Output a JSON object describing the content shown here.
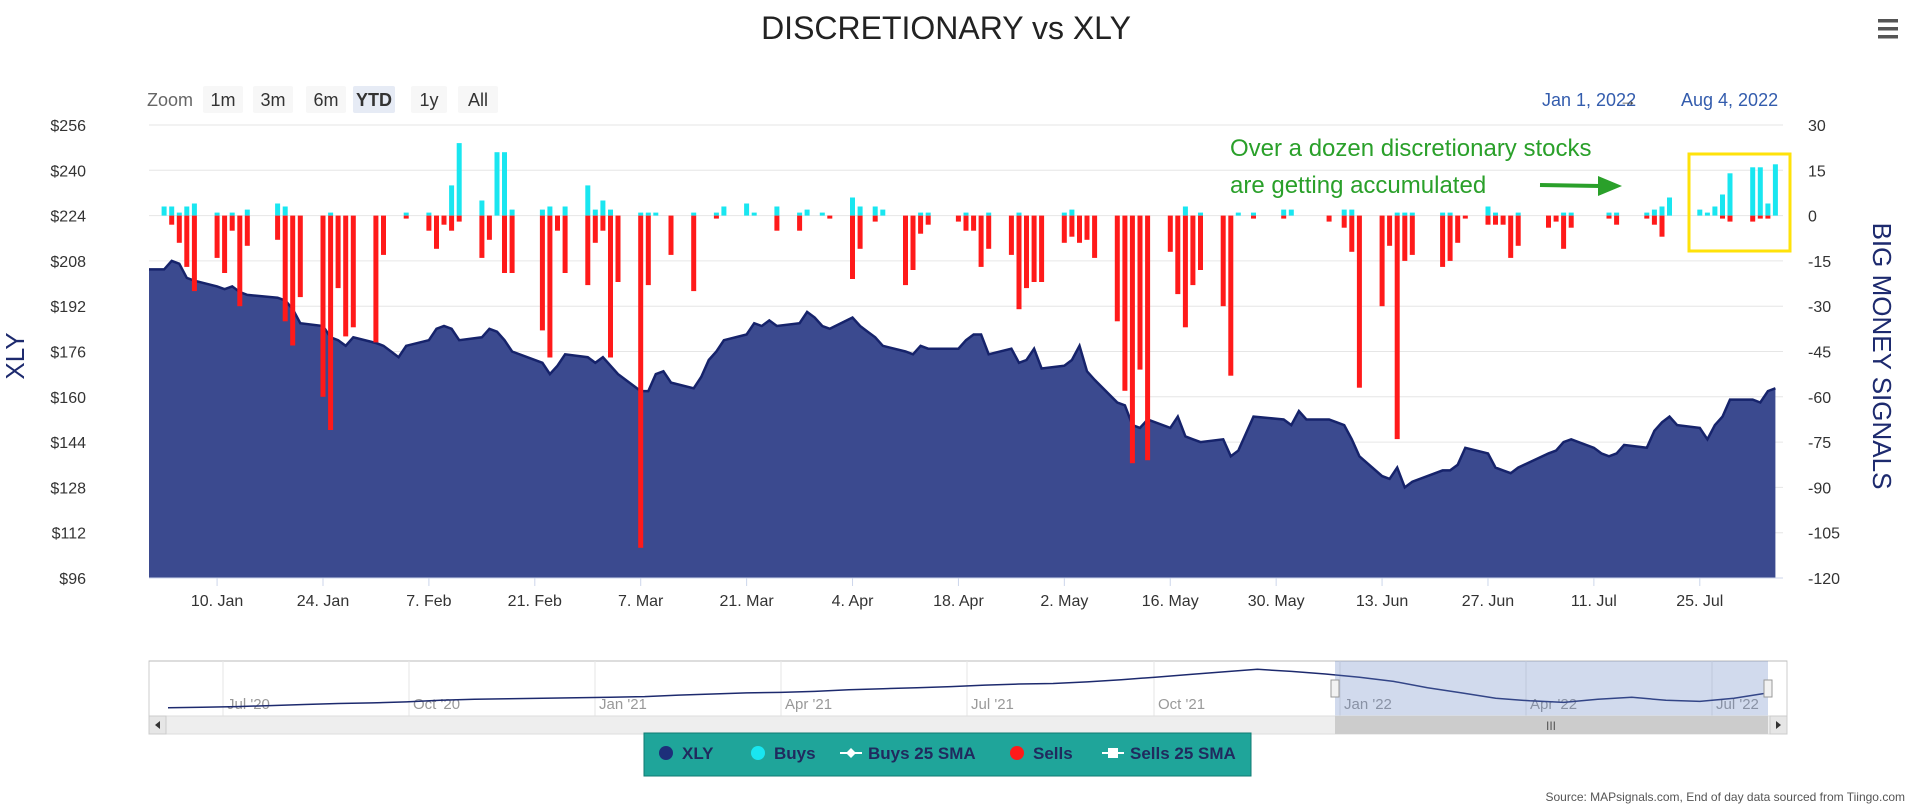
{
  "chart_data": {
    "type": "area+bar",
    "title": "DISCRETIONARY vs XLY",
    "left_axis_label": "XLY",
    "right_axis_label": "BIG MONEY SIGNALS",
    "left_ylim": [
      96,
      256
    ],
    "left_ticks": [
      "$256",
      "$240",
      "$224",
      "$208",
      "$192",
      "$176",
      "$160",
      "$144",
      "$128",
      "$112",
      "$96"
    ],
    "right_ylim": [
      -120,
      30
    ],
    "right_ticks": [
      "30",
      "15",
      "0",
      "-15",
      "-30",
      "-45",
      "-60",
      "-75",
      "-90",
      "-105",
      "-120"
    ],
    "x_ticks": [
      "10. Jan",
      "24. Jan",
      "7. Feb",
      "21. Feb",
      "7. Mar",
      "21. Mar",
      "4. Apr",
      "18. Apr",
      "2. May",
      "16. May",
      "30. May",
      "13. Jun",
      "27. Jun",
      "11. Jul",
      "25. Jul"
    ],
    "date_range": {
      "from": "Jan 1, 2022",
      "to": "Aug 4, 2022",
      "arrow": "→"
    },
    "zoom": {
      "label": "Zoom",
      "buttons": [
        "1m",
        "3m",
        "6m",
        "YTD",
        "1y",
        "All"
      ],
      "selected": "YTD"
    },
    "annotation": {
      "line1": "Over a dozen discretionary stocks",
      "line2": "are getting accumulated",
      "color": "#2aa02a"
    },
    "navigator_ticks": [
      "Jul '20",
      "Oct '20",
      "Jan '21",
      "Apr '21",
      "Jul '21",
      "Oct '21",
      "Jan '22",
      "Apr '22",
      "Jul '22"
    ],
    "legend": [
      {
        "name": "XLY",
        "symbol": "circle",
        "color": "#1d2f7a"
      },
      {
        "name": "Buys",
        "symbol": "circle",
        "color": "#19e6f0"
      },
      {
        "name": "Buys 25 SMA",
        "symbol": "line-diamond",
        "color": "#ffffff"
      },
      {
        "name": "Sells",
        "symbol": "circle",
        "color": "#ff1a1a"
      },
      {
        "name": "Sells 25 SMA",
        "symbol": "line-square",
        "color": "#ffffff"
      }
    ],
    "source": "Source: MAPsignals.com, End of day data sourced from Tiingo.com",
    "colors": {
      "xly_fill": "#3b4a8f",
      "xly_line": "#16236b",
      "buys": "#19e6f0",
      "sells": "#ff1a1a",
      "legend_bg": "#1fa59a",
      "highlight_box": "#ffe20a"
    },
    "xly_series": [
      [
        "2022-01-03",
        205
      ],
      [
        "2022-01-04",
        208
      ],
      [
        "2022-01-05",
        207
      ],
      [
        "2022-01-06",
        202
      ],
      [
        "2022-01-07",
        201
      ],
      [
        "2022-01-10",
        199
      ],
      [
        "2022-01-11",
        198
      ],
      [
        "2022-01-12",
        199
      ],
      [
        "2022-01-13",
        197
      ],
      [
        "2022-01-14",
        196
      ],
      [
        "2022-01-18",
        195
      ],
      [
        "2022-01-19",
        194
      ],
      [
        "2022-01-20",
        191
      ],
      [
        "2022-01-21",
        186
      ],
      [
        "2022-01-24",
        185
      ],
      [
        "2022-01-25",
        181
      ],
      [
        "2022-01-26",
        180
      ],
      [
        "2022-01-27",
        178
      ],
      [
        "2022-01-28",
        181
      ],
      [
        "2022-01-31",
        179
      ],
      [
        "2022-02-01",
        178
      ],
      [
        "2022-02-02",
        176
      ],
      [
        "2022-02-03",
        174
      ],
      [
        "2022-02-04",
        178
      ],
      [
        "2022-02-07",
        180
      ],
      [
        "2022-02-08",
        184
      ],
      [
        "2022-02-09",
        185
      ],
      [
        "2022-02-10",
        184
      ],
      [
        "2022-02-11",
        180
      ],
      [
        "2022-02-14",
        181
      ],
      [
        "2022-02-15",
        184
      ],
      [
        "2022-02-16",
        183
      ],
      [
        "2022-02-17",
        180
      ],
      [
        "2022-02-18",
        176
      ],
      [
        "2022-02-22",
        172
      ],
      [
        "2022-02-23",
        168
      ],
      [
        "2022-02-24",
        171
      ],
      [
        "2022-02-25",
        175
      ],
      [
        "2022-02-28",
        174
      ],
      [
        "2022-03-01",
        172
      ],
      [
        "2022-03-02",
        174
      ],
      [
        "2022-03-03",
        171
      ],
      [
        "2022-03-04",
        168
      ],
      [
        "2022-03-07",
        162
      ],
      [
        "2022-03-08",
        162
      ],
      [
        "2022-03-09",
        168
      ],
      [
        "2022-03-10",
        169
      ],
      [
        "2022-03-11",
        165
      ],
      [
        "2022-03-14",
        163
      ],
      [
        "2022-03-15",
        167
      ],
      [
        "2022-03-16",
        173
      ],
      [
        "2022-03-17",
        176
      ],
      [
        "2022-03-18",
        180
      ],
      [
        "2022-03-21",
        182
      ],
      [
        "2022-03-22",
        186
      ],
      [
        "2022-03-23",
        185
      ],
      [
        "2022-03-24",
        187
      ],
      [
        "2022-03-25",
        185
      ],
      [
        "2022-03-28",
        186
      ],
      [
        "2022-03-29",
        190
      ],
      [
        "2022-03-30",
        188
      ],
      [
        "2022-03-31",
        185
      ],
      [
        "2022-04-01",
        184
      ],
      [
        "2022-04-04",
        188
      ],
      [
        "2022-04-05",
        185
      ],
      [
        "2022-04-06",
        183
      ],
      [
        "2022-04-07",
        181
      ],
      [
        "2022-04-08",
        178
      ],
      [
        "2022-04-11",
        176
      ],
      [
        "2022-04-12",
        175
      ],
      [
        "2022-04-13",
        178
      ],
      [
        "2022-04-14",
        177
      ],
      [
        "2022-04-18",
        177
      ],
      [
        "2022-04-19",
        180
      ],
      [
        "2022-04-20",
        182
      ],
      [
        "2022-04-21",
        182
      ],
      [
        "2022-04-22",
        175
      ],
      [
        "2022-04-25",
        177
      ],
      [
        "2022-04-26",
        172
      ],
      [
        "2022-04-27",
        173
      ],
      [
        "2022-04-28",
        177
      ],
      [
        "2022-04-29",
        170
      ],
      [
        "2022-05-02",
        171
      ],
      [
        "2022-05-03",
        173
      ],
      [
        "2022-05-04",
        178
      ],
      [
        "2022-05-05",
        169
      ],
      [
        "2022-05-06",
        166
      ],
      [
        "2022-05-09",
        158
      ],
      [
        "2022-05-10",
        157
      ],
      [
        "2022-05-11",
        150
      ],
      [
        "2022-05-12",
        149
      ],
      [
        "2022-05-13",
        152
      ],
      [
        "2022-05-16",
        149
      ],
      [
        "2022-05-17",
        153
      ],
      [
        "2022-05-18",
        146
      ],
      [
        "2022-05-19",
        145
      ],
      [
        "2022-05-20",
        144
      ],
      [
        "2022-05-23",
        145
      ],
      [
        "2022-05-24",
        139
      ],
      [
        "2022-05-25",
        141
      ],
      [
        "2022-05-26",
        147
      ],
      [
        "2022-05-27",
        153
      ],
      [
        "2022-05-31",
        152
      ],
      [
        "2022-06-01",
        150
      ],
      [
        "2022-06-02",
        155
      ],
      [
        "2022-06-03",
        152
      ],
      [
        "2022-06-06",
        152
      ],
      [
        "2022-06-07",
        151
      ],
      [
        "2022-06-08",
        150
      ],
      [
        "2022-06-09",
        145
      ],
      [
        "2022-06-10",
        139
      ],
      [
        "2022-06-13",
        132
      ],
      [
        "2022-06-14",
        131
      ],
      [
        "2022-06-15",
        135
      ],
      [
        "2022-06-16",
        128
      ],
      [
        "2022-06-17",
        130
      ],
      [
        "2022-06-21",
        134
      ],
      [
        "2022-06-22",
        134
      ],
      [
        "2022-06-23",
        136
      ],
      [
        "2022-06-24",
        142
      ],
      [
        "2022-06-27",
        140
      ],
      [
        "2022-06-28",
        135
      ],
      [
        "2022-06-29",
        134
      ],
      [
        "2022-06-30",
        133
      ],
      [
        "2022-07-01",
        135
      ],
      [
        "2022-07-05",
        140
      ],
      [
        "2022-07-06",
        141
      ],
      [
        "2022-07-07",
        144
      ],
      [
        "2022-07-08",
        145
      ],
      [
        "2022-07-11",
        142
      ],
      [
        "2022-07-12",
        140
      ],
      [
        "2022-07-13",
        139
      ],
      [
        "2022-07-14",
        140
      ],
      [
        "2022-07-15",
        143
      ],
      [
        "2022-07-18",
        142
      ],
      [
        "2022-07-19",
        148
      ],
      [
        "2022-07-20",
        151
      ],
      [
        "2022-07-21",
        153
      ],
      [
        "2022-07-22",
        150
      ],
      [
        "2022-07-25",
        149
      ],
      [
        "2022-07-26",
        145
      ],
      [
        "2022-07-27",
        150
      ],
      [
        "2022-07-28",
        153
      ],
      [
        "2022-07-29",
        159
      ],
      [
        "2022-08-01",
        159
      ],
      [
        "2022-08-02",
        158
      ],
      [
        "2022-08-03",
        162
      ],
      [
        "2022-08-04",
        163
      ]
    ],
    "buys": [
      [
        "2022-01-03",
        3
      ],
      [
        "2022-01-04",
        3
      ],
      [
        "2022-01-05",
        1
      ],
      [
        "2022-01-06",
        3
      ],
      [
        "2022-01-07",
        4
      ],
      [
        "2022-01-10",
        1
      ],
      [
        "2022-01-12",
        1
      ],
      [
        "2022-01-14",
        2
      ],
      [
        "2022-01-18",
        4
      ],
      [
        "2022-01-19",
        3
      ],
      [
        "2022-01-25",
        1
      ],
      [
        "2022-02-04",
        1
      ],
      [
        "2022-02-07",
        1
      ],
      [
        "2022-02-10",
        10
      ],
      [
        "2022-02-11",
        24
      ],
      [
        "2022-02-14",
        5
      ],
      [
        "2022-02-16",
        21
      ],
      [
        "2022-02-17",
        21
      ],
      [
        "2022-02-18",
        2
      ],
      [
        "2022-02-22",
        2
      ],
      [
        "2022-02-23",
        3
      ],
      [
        "2022-02-25",
        3
      ],
      [
        "2022-02-28",
        10
      ],
      [
        "2022-03-01",
        2
      ],
      [
        "2022-03-02",
        5
      ],
      [
        "2022-03-03",
        2
      ],
      [
        "2022-03-07",
        1
      ],
      [
        "2022-03-08",
        1
      ],
      [
        "2022-03-09",
        1
      ],
      [
        "2022-03-14",
        1
      ],
      [
        "2022-03-17",
        1
      ],
      [
        "2022-03-18",
        3
      ],
      [
        "2022-03-21",
        4
      ],
      [
        "2022-03-22",
        1
      ],
      [
        "2022-03-25",
        3
      ],
      [
        "2022-03-28",
        1
      ],
      [
        "2022-03-29",
        2
      ],
      [
        "2022-03-31",
        1
      ],
      [
        "2022-04-04",
        6
      ],
      [
        "2022-04-05",
        3
      ],
      [
        "2022-04-07",
        3
      ],
      [
        "2022-04-08",
        2
      ],
      [
        "2022-04-13",
        1
      ],
      [
        "2022-04-14",
        1
      ],
      [
        "2022-04-19",
        1
      ],
      [
        "2022-04-22",
        1
      ],
      [
        "2022-04-26",
        1
      ],
      [
        "2022-05-02",
        1
      ],
      [
        "2022-05-03",
        2
      ],
      [
        "2022-05-18",
        3
      ],
      [
        "2022-05-20",
        1
      ],
      [
        "2022-05-25",
        1
      ],
      [
        "2022-05-27",
        1
      ],
      [
        "2022-05-31",
        2
      ],
      [
        "2022-06-01",
        2
      ],
      [
        "2022-06-08",
        2
      ],
      [
        "2022-06-09",
        2
      ],
      [
        "2022-06-15",
        1
      ],
      [
        "2022-06-16",
        1
      ],
      [
        "2022-06-17",
        1
      ],
      [
        "2022-06-21",
        1
      ],
      [
        "2022-06-22",
        1
      ],
      [
        "2022-06-27",
        3
      ],
      [
        "2022-06-28",
        1
      ],
      [
        "2022-07-01",
        1
      ],
      [
        "2022-07-07",
        1
      ],
      [
        "2022-07-08",
        1
      ],
      [
        "2022-07-13",
        1
      ],
      [
        "2022-07-14",
        1
      ],
      [
        "2022-07-18",
        1
      ],
      [
        "2022-07-19",
        2
      ],
      [
        "2022-07-20",
        3
      ],
      [
        "2022-07-21",
        6
      ],
      [
        "2022-07-25",
        2
      ],
      [
        "2022-07-26",
        1
      ],
      [
        "2022-07-27",
        3
      ],
      [
        "2022-07-28",
        7
      ],
      [
        "2022-07-29",
        14
      ],
      [
        "2022-08-01",
        16
      ],
      [
        "2022-08-02",
        16
      ],
      [
        "2022-08-03",
        4
      ],
      [
        "2022-08-04",
        17
      ]
    ],
    "sells": [
      [
        "2022-01-04",
        -3
      ],
      [
        "2022-01-05",
        -9
      ],
      [
        "2022-01-06",
        -17
      ],
      [
        "2022-01-07",
        -25
      ],
      [
        "2022-01-10",
        -14
      ],
      [
        "2022-01-11",
        -19
      ],
      [
        "2022-01-12",
        -5
      ],
      [
        "2022-01-13",
        -30
      ],
      [
        "2022-01-14",
        -10
      ],
      [
        "2022-01-18",
        -8
      ],
      [
        "2022-01-19",
        -35
      ],
      [
        "2022-01-20",
        -43
      ],
      [
        "2022-01-21",
        -27
      ],
      [
        "2022-01-24",
        -60
      ],
      [
        "2022-01-25",
        -71
      ],
      [
        "2022-01-26",
        -24
      ],
      [
        "2022-01-27",
        -40
      ],
      [
        "2022-01-28",
        -37
      ],
      [
        "2022-01-31",
        -42
      ],
      [
        "2022-02-01",
        -13
      ],
      [
        "2022-02-04",
        -1
      ],
      [
        "2022-02-07",
        -5
      ],
      [
        "2022-02-08",
        -11
      ],
      [
        "2022-02-09",
        -3
      ],
      [
        "2022-02-10",
        -5
      ],
      [
        "2022-02-11",
        -2
      ],
      [
        "2022-02-14",
        -14
      ],
      [
        "2022-02-15",
        -8
      ],
      [
        "2022-02-17",
        -19
      ],
      [
        "2022-02-18",
        -19
      ],
      [
        "2022-02-22",
        -38
      ],
      [
        "2022-02-23",
        -47
      ],
      [
        "2022-02-24",
        -5
      ],
      [
        "2022-02-25",
        -19
      ],
      [
        "2022-02-28",
        -23
      ],
      [
        "2022-03-01",
        -9
      ],
      [
        "2022-03-02",
        -5
      ],
      [
        "2022-03-03",
        -47
      ],
      [
        "2022-03-04",
        -22
      ],
      [
        "2022-03-07",
        -110
      ],
      [
        "2022-03-08",
        -23
      ],
      [
        "2022-03-11",
        -13
      ],
      [
        "2022-03-14",
        -25
      ],
      [
        "2022-03-17",
        -1
      ],
      [
        "2022-03-25",
        -5
      ],
      [
        "2022-03-28",
        -5
      ],
      [
        "2022-04-01",
        -1
      ],
      [
        "2022-04-04",
        -21
      ],
      [
        "2022-04-05",
        -11
      ],
      [
        "2022-04-07",
        -2
      ],
      [
        "2022-04-11",
        -23
      ],
      [
        "2022-04-12",
        -18
      ],
      [
        "2022-04-13",
        -6
      ],
      [
        "2022-04-14",
        -3
      ],
      [
        "2022-04-18",
        -2
      ],
      [
        "2022-04-19",
        -5
      ],
      [
        "2022-04-20",
        -5
      ],
      [
        "2022-04-21",
        -17
      ],
      [
        "2022-04-22",
        -11
      ],
      [
        "2022-04-25",
        -13
      ],
      [
        "2022-04-26",
        -31
      ],
      [
        "2022-04-27",
        -24
      ],
      [
        "2022-04-28",
        -22
      ],
      [
        "2022-04-29",
        -22
      ],
      [
        "2022-05-02",
        -9
      ],
      [
        "2022-05-03",
        -7
      ],
      [
        "2022-05-04",
        -9
      ],
      [
        "2022-05-05",
        -8
      ],
      [
        "2022-05-06",
        -14
      ],
      [
        "2022-05-09",
        -35
      ],
      [
        "2022-05-10",
        -58
      ],
      [
        "2022-05-11",
        -82
      ],
      [
        "2022-05-12",
        -51
      ],
      [
        "2022-05-13",
        -81
      ],
      [
        "2022-05-16",
        -12
      ],
      [
        "2022-05-17",
        -26
      ],
      [
        "2022-05-18",
        -37
      ],
      [
        "2022-05-19",
        -23
      ],
      [
        "2022-05-20",
        -18
      ],
      [
        "2022-05-23",
        -30
      ],
      [
        "2022-05-24",
        -53
      ],
      [
        "2022-05-27",
        -1
      ],
      [
        "2022-05-31",
        -1
      ],
      [
        "2022-06-06",
        -2
      ],
      [
        "2022-06-08",
        -4
      ],
      [
        "2022-06-09",
        -12
      ],
      [
        "2022-06-10",
        -57
      ],
      [
        "2022-06-13",
        -30
      ],
      [
        "2022-06-14",
        -10
      ],
      [
        "2022-06-15",
        -74
      ],
      [
        "2022-06-16",
        -15
      ],
      [
        "2022-06-17",
        -13
      ],
      [
        "2022-06-21",
        -17
      ],
      [
        "2022-06-22",
        -15
      ],
      [
        "2022-06-23",
        -9
      ],
      [
        "2022-06-24",
        -1
      ],
      [
        "2022-06-27",
        -3
      ],
      [
        "2022-06-28",
        -3
      ],
      [
        "2022-06-29",
        -3
      ],
      [
        "2022-06-30",
        -14
      ],
      [
        "2022-07-01",
        -10
      ],
      [
        "2022-07-05",
        -4
      ],
      [
        "2022-07-06",
        -2
      ],
      [
        "2022-07-07",
        -11
      ],
      [
        "2022-07-08",
        -4
      ],
      [
        "2022-07-13",
        -1
      ],
      [
        "2022-07-14",
        -3
      ],
      [
        "2022-07-18",
        -1
      ],
      [
        "2022-07-19",
        -3
      ],
      [
        "2022-07-20",
        -7
      ],
      [
        "2022-07-28",
        -1
      ],
      [
        "2022-07-29",
        -2
      ],
      [
        "2022-08-01",
        -2
      ],
      [
        "2022-08-02",
        -1
      ],
      [
        "2022-08-03",
        -1
      ]
    ]
  }
}
